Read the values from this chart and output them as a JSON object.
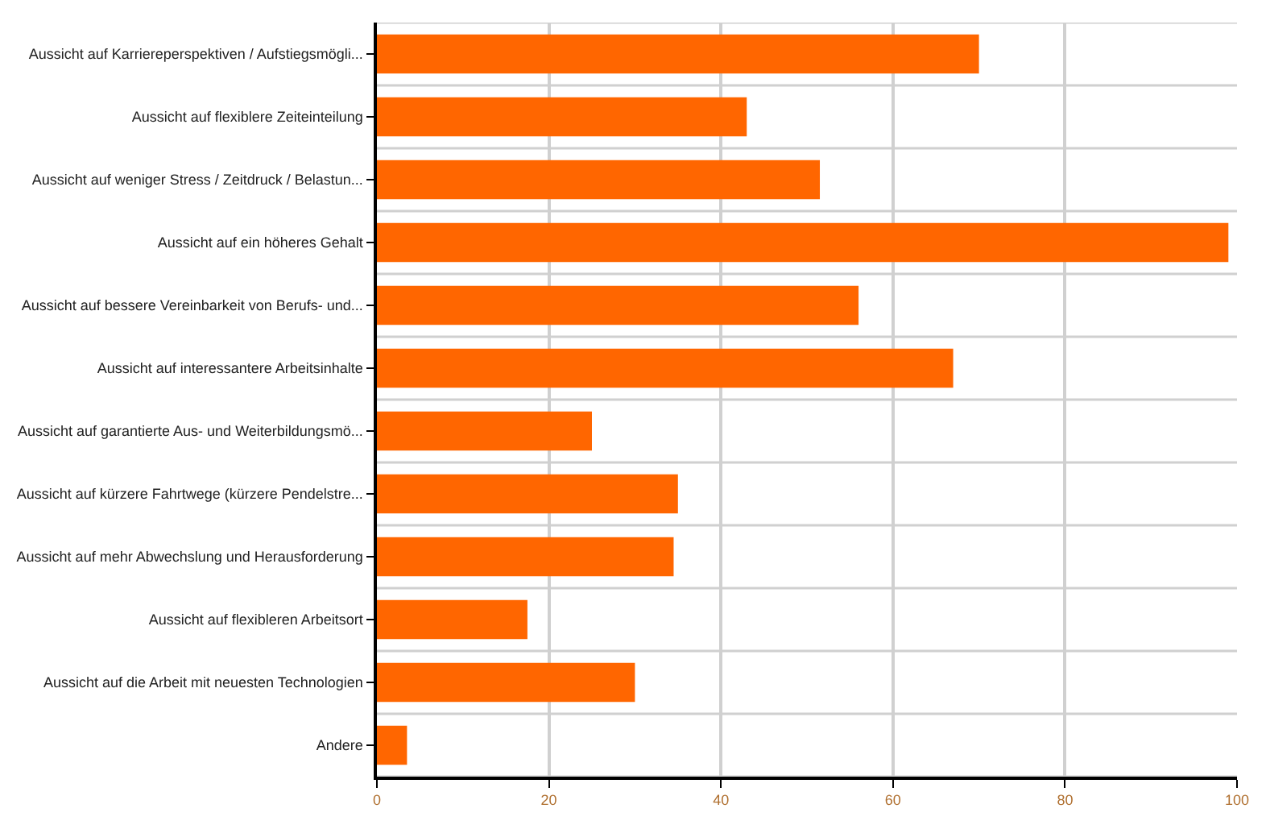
{
  "chart_data": {
    "type": "bar",
    "orientation": "horizontal",
    "categories": [
      "Aussicht auf Karriereperspektiven / Aufstiegsmögli...",
      "Aussicht auf flexiblere Zeiteinteilung",
      "Aussicht auf weniger Stress / Zeitdruck / Belastun...",
      "Aussicht auf ein höheres Gehalt",
      "Aussicht auf bessere Vereinbarkeit von Berufs- und...",
      "Aussicht auf interessantere Arbeitsinhalte",
      "Aussicht auf garantierte Aus- und Weiterbildungsmö...",
      "Aussicht auf kürzere Fahrtwege (kürzere Pendelstre...",
      "Aussicht auf mehr Abwechslung und Herausforderung",
      "Aussicht auf flexibleren Arbeitsort",
      "Aussicht auf die Arbeit mit neuesten Technologien",
      "Andere"
    ],
    "values": [
      70,
      43,
      51.5,
      99,
      56,
      67,
      25,
      35,
      34.5,
      17.5,
      30,
      3.5
    ],
    "color": "#ff6600",
    "xlim": [
      0,
      100
    ],
    "xticks": [
      0,
      20,
      40,
      60,
      80,
      100
    ],
    "grid": true,
    "legend": false
  }
}
